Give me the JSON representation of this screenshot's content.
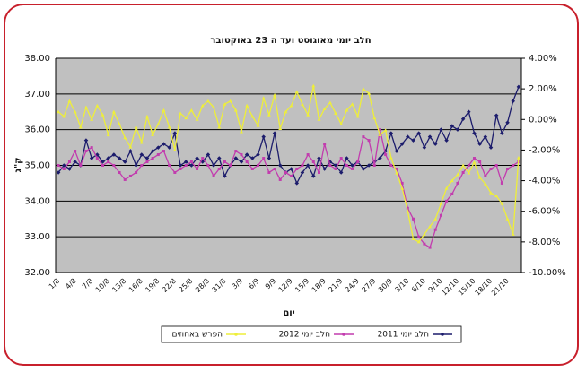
{
  "chart_data": {
    "type": "line",
    "title": "חלב יומי מאוגוסט ועד ה 23 באוקטובר",
    "xlabel": "יום",
    "ylabel": "ק\"ג",
    "grid": true,
    "legend": "bottom",
    "categories": [
      "1/8",
      null,
      null,
      "4/8",
      null,
      null,
      "7/8",
      null,
      null,
      "10/8",
      null,
      null,
      "13/8",
      null,
      null,
      "16/8",
      null,
      null,
      "19/8",
      null,
      null,
      "22/8",
      null,
      null,
      "25/8",
      null,
      null,
      "28/8",
      null,
      null,
      "31/8",
      null,
      null,
      "3/9",
      null,
      null,
      "6/9",
      null,
      null,
      "9/9",
      null,
      null,
      "12/9",
      null,
      null,
      "15/9",
      null,
      null,
      "18/9",
      null,
      null,
      "21/9",
      null,
      null,
      "24/9",
      null,
      null,
      "27/9",
      null,
      null,
      "30/9",
      null,
      null,
      "3/10",
      null,
      null,
      "6/10",
      null,
      null,
      "9/10",
      null,
      null,
      "12/10",
      null,
      null,
      "15/10",
      null,
      null,
      "18/10",
      null,
      null,
      "21/10",
      null,
      null
    ],
    "ylim": [
      32,
      38
    ],
    "yticks": [
      {
        "value": 32,
        "label": "32.00"
      },
      {
        "value": 33,
        "label": "33.00"
      },
      {
        "value": 34,
        "label": "34.00"
      },
      {
        "value": 35,
        "label": "35.00"
      },
      {
        "value": 36,
        "label": "36.00"
      },
      {
        "value": 37,
        "label": "37.00"
      },
      {
        "value": 38,
        "label": "38.00"
      }
    ],
    "y2lim": [
      -10,
      4
    ],
    "y2ticks": [
      {
        "value": -10,
        "label": "-10.00%"
      },
      {
        "value": -8,
        "label": "-8.00%"
      },
      {
        "value": -6,
        "label": "-6.00%"
      },
      {
        "value": -4,
        "label": "-4.00%"
      },
      {
        "value": -2,
        "label": "-2.00%"
      },
      {
        "value": 0,
        "label": "0.00%"
      },
      {
        "value": 2,
        "label": "2.00%"
      },
      {
        "value": 4,
        "label": "4.00%"
      }
    ],
    "series": [
      {
        "name": "חלב יומי 2011",
        "color": "#1c1c6c",
        "values": [
          34.8,
          35.0,
          34.9,
          35.1,
          35.0,
          35.7,
          35.2,
          35.3,
          35.1,
          35.2,
          35.3,
          35.2,
          35.1,
          35.4,
          35.0,
          35.3,
          35.2,
          35.4,
          35.5,
          35.6,
          35.5,
          35.9,
          35.0,
          35.1,
          35.0,
          35.2,
          35.1,
          35.3,
          35.0,
          35.2,
          34.7,
          35.0,
          35.2,
          35.1,
          35.3,
          35.2,
          35.3,
          35.8,
          35.2,
          35.9,
          35.0,
          34.8,
          34.9,
          34.5,
          34.8,
          35.0,
          34.7,
          35.2,
          34.9,
          35.1,
          35.0,
          34.8,
          35.2,
          35.0,
          35.1,
          34.9,
          35.0,
          35.1,
          35.2,
          35.4,
          35.9,
          35.4,
          35.6,
          35.8,
          35.7,
          35.9,
          35.5,
          35.8,
          35.6,
          36.0,
          35.7,
          36.1,
          36.0,
          36.3,
          36.5,
          35.9,
          35.6,
          35.8,
          35.5,
          36.4,
          35.9,
          36.2,
          36.8,
          37.2
        ]
      },
      {
        "name": "חלב יומי 2012",
        "color": "#c23cae",
        "values": [
          35.0,
          34.9,
          35.1,
          35.4,
          35.0,
          35.4,
          35.5,
          35.2,
          35.0,
          35.1,
          35.0,
          34.8,
          34.6,
          34.7,
          34.8,
          35.0,
          35.1,
          35.2,
          35.3,
          35.4,
          35.0,
          34.8,
          34.9,
          35.0,
          35.1,
          34.9,
          35.2,
          35.0,
          34.7,
          34.9,
          35.1,
          35.0,
          35.4,
          35.3,
          35.1,
          34.9,
          35.0,
          35.2,
          34.8,
          34.9,
          34.6,
          34.8,
          34.7,
          34.9,
          35.0,
          35.3,
          35.1,
          34.8,
          35.6,
          35.0,
          34.9,
          35.2,
          35.0,
          34.9,
          35.1,
          35.8,
          35.7,
          35.0,
          36.0,
          35.3,
          35.0,
          34.9,
          34.5,
          33.8,
          33.5,
          33.0,
          32.8,
          32.7,
          33.2,
          33.6,
          34.0,
          34.2,
          34.5,
          34.8,
          35.0,
          35.2,
          35.1,
          34.7,
          34.9,
          35.0,
          34.5,
          34.9,
          35.0,
          35.1
        ]
      },
      {
        "name": "הפרש באחוזים",
        "color": "#eeee3a",
        "axis": "y2",
        "values": [
          0.5,
          0.2,
          1.2,
          0.5,
          -0.5,
          0.8,
          0.0,
          0.9,
          0.3,
          -1.0,
          0.5,
          -0.3,
          -1.2,
          -1.8,
          -0.5,
          -1.5,
          0.2,
          -1.0,
          -0.3,
          0.6,
          -0.5,
          -2.0,
          0.4,
          0.1,
          0.6,
          0.0,
          0.9,
          1.2,
          0.8,
          -0.5,
          1.0,
          1.2,
          0.6,
          -0.8,
          0.9,
          0.2,
          -0.4,
          1.4,
          0.3,
          1.6,
          -0.6,
          0.5,
          0.9,
          1.8,
          1.0,
          0.3,
          2.2,
          0.0,
          0.7,
          1.1,
          0.4,
          -0.3,
          0.6,
          1.0,
          0.2,
          2.0,
          1.7,
          0.1,
          -1.0,
          -0.7,
          -2.5,
          -3.5,
          -4.5,
          -6.0,
          -7.8,
          -8.0,
          -7.5,
          -7.0,
          -6.5,
          -5.5,
          -4.5,
          -4.0,
          -3.6,
          -3.0,
          -3.5,
          -2.8,
          -3.8,
          -4.2,
          -4.8,
          -5.0,
          -5.5,
          -6.5,
          -7.5,
          -2.5
        ]
      }
    ]
  }
}
